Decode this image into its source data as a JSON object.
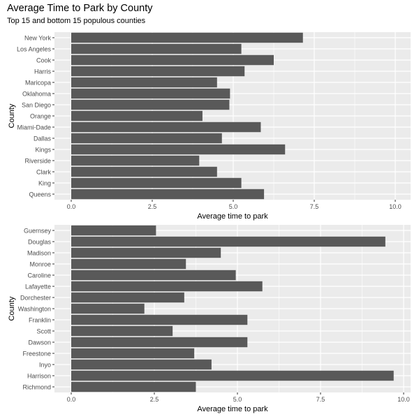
{
  "title": "Average Time to Park by County",
  "subtitle": "Top 15 and bottom 15 populous counties",
  "chart_data": [
    {
      "type": "bar",
      "orientation": "horizontal",
      "xlabel": "Average time to park",
      "ylabel": "County",
      "xlim": [
        -0.6,
        10.5
      ],
      "xticks": [
        0.0,
        2.5,
        5.0,
        7.5,
        10.0
      ],
      "xtick_labels": [
        "0.0",
        "2.5",
        "5.0",
        "7.5",
        "10.0"
      ],
      "grid": true,
      "bar_color": "#595959",
      "panel_color": "#ebebeb",
      "categories": [
        "New York",
        "Los Angeles",
        "Cook",
        "Harris",
        "Maricopa",
        "Oklahoma",
        "San Diego",
        "Orange",
        "Miami-Dade",
        "Dallas",
        "Kings",
        "Riverside",
        "Clark",
        "King",
        "Queens"
      ],
      "values": [
        7.15,
        5.25,
        6.25,
        5.35,
        4.5,
        4.9,
        4.88,
        4.05,
        5.85,
        4.65,
        6.6,
        3.95,
        4.5,
        5.25,
        5.95
      ]
    },
    {
      "type": "bar",
      "orientation": "horizontal",
      "xlabel": "Average time to park",
      "ylabel": "County",
      "xlim": [
        -0.5,
        10.2
      ],
      "xticks": [
        0.0,
        2.5,
        5.0,
        7.5,
        10.0
      ],
      "xtick_labels": [
        "0.0",
        "2.5",
        "5.0",
        "7.5",
        "10.0"
      ],
      "grid": true,
      "bar_color": "#595959",
      "panel_color": "#ebebeb",
      "categories": [
        "Guernsey",
        "Douglas",
        "Madison",
        "Monroe",
        "Caroline",
        "Lafayette",
        "Dorchester",
        "Washington",
        "Franklin",
        "Scott",
        "Dawson",
        "Freestone",
        "Inyo",
        "Harrison",
        "Richmond"
      ],
      "values": [
        2.55,
        9.45,
        4.5,
        3.45,
        4.95,
        5.75,
        3.4,
        2.2,
        5.3,
        3.05,
        5.3,
        3.7,
        4.22,
        9.7,
        3.75
      ]
    }
  ]
}
